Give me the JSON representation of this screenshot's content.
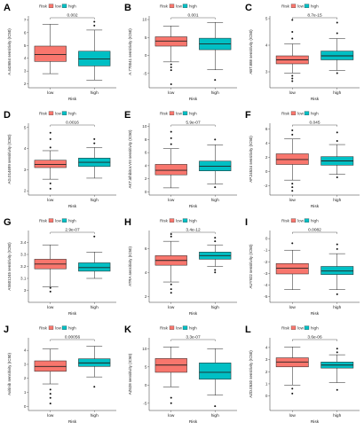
{
  "colors": {
    "low": "#F8766D",
    "high": "#00BFC4"
  },
  "chart_data": [
    {
      "type": "box",
      "letter": "A",
      "ylabel": "A.443654 sensitivity (IC50)",
      "xlabel": "Risk",
      "legend_title": "Risk",
      "legend": [
        "low",
        "high"
      ],
      "categories": [
        "low",
        "high"
      ],
      "pvalue": "0.002",
      "ylim": [
        1.7,
        7.3
      ],
      "yticks": [
        2,
        3,
        4,
        5,
        6,
        7
      ],
      "boxes": [
        {
          "min": 2.8,
          "q1": 3.75,
          "median": 4.3,
          "q3": 4.95,
          "max": 6.65,
          "outliers": []
        },
        {
          "min": 2.3,
          "q1": 3.4,
          "median": 3.95,
          "q3": 4.55,
          "max": 6.2,
          "outliers": [
            6.55,
            6.85
          ]
        }
      ]
    },
    {
      "type": "box",
      "letter": "B",
      "ylabel": "A.770041 sensitivity (IC50)",
      "xlabel": "Risk",
      "legend_title": "Risk",
      "legend": [
        "low",
        "high"
      ],
      "categories": [
        "low",
        "high"
      ],
      "pvalue": "0.001",
      "ylim": [
        -9,
        11
      ],
      "yticks": [
        -5,
        0,
        5,
        10
      ],
      "boxes": [
        {
          "min": -1.8,
          "q1": 2.6,
          "median": 4.0,
          "q3": 5.2,
          "max": 8.2,
          "outliers": [
            -2.5,
            -3.3,
            -4.1,
            -8.0
          ]
        },
        {
          "min": -4.0,
          "q1": 1.6,
          "median": 3.2,
          "q3": 4.8,
          "max": 9.2,
          "outliers": [
            -6.8
          ]
        }
      ]
    },
    {
      "type": "box",
      "letter": "C",
      "ylabel": "ABT.888 sensitivity (IC50)",
      "xlabel": "Risk",
      "legend_title": "Risk",
      "legend": [
        "low",
        "high"
      ],
      "categories": [
        "low",
        "high"
      ],
      "pvalue": "8.7e-15",
      "ylim": [
        2.4,
        5.1
      ],
      "yticks": [
        3,
        4,
        5
      ],
      "boxes": [
        {
          "min": 2.95,
          "q1": 3.3,
          "median": 3.45,
          "q3": 3.6,
          "max": 4.05,
          "outliers": [
            4.25,
            4.5,
            4.95,
            2.85,
            2.75,
            2.65
          ]
        },
        {
          "min": 3.05,
          "q1": 3.45,
          "median": 3.6,
          "q3": 3.78,
          "max": 4.25,
          "outliers": [
            4.45,
            4.85,
            2.95
          ]
        }
      ]
    },
    {
      "type": "box",
      "letter": "D",
      "ylabel": "AG.014699 sensitivity (IC50)",
      "xlabel": "Risk",
      "legend_title": "Risk",
      "legend": [
        "low",
        "high"
      ],
      "categories": [
        "low",
        "high"
      ],
      "pvalue": "0.0016",
      "ylim": [
        1.8,
        5.2
      ],
      "yticks": [
        2,
        3,
        4,
        5
      ],
      "boxes": [
        {
          "min": 2.55,
          "q1": 3.1,
          "median": 3.25,
          "q3": 3.45,
          "max": 3.9,
          "outliers": [
            4.05,
            4.45,
            4.75,
            2.35,
            2.1
          ]
        },
        {
          "min": 2.6,
          "q1": 3.15,
          "median": 3.35,
          "q3": 3.55,
          "max": 4.05,
          "outliers": [
            4.25,
            4.45
          ]
        }
      ]
    },
    {
      "type": "box",
      "letter": "E",
      "ylabel": "AKT.inhibitor.VIII sensitivity (IC50)",
      "xlabel": "Risk",
      "legend_title": "Risk",
      "legend": [
        "low",
        "high"
      ],
      "categories": [
        "low",
        "high"
      ],
      "pvalue": "5.9e-07",
      "ylim": [
        -0.5,
        10.5
      ],
      "yticks": [
        0,
        2,
        4,
        6,
        8,
        10
      ],
      "boxes": [
        {
          "min": 0.6,
          "q1": 2.6,
          "median": 3.3,
          "q3": 4.2,
          "max": 6.6,
          "outliers": [
            7.3,
            8.2,
            9.2
          ]
        },
        {
          "min": 1.2,
          "q1": 3.2,
          "median": 3.9,
          "q3": 4.7,
          "max": 7.2,
          "outliers": [
            8.0,
            0.7
          ]
        }
      ]
    },
    {
      "type": "box",
      "letter": "F",
      "ylabel": "AP.24534 sensitivity (IC50)",
      "xlabel": "Risk",
      "legend_title": "Risk",
      "legend": [
        "low",
        "high"
      ],
      "categories": [
        "low",
        "high"
      ],
      "pvalue": "0.045",
      "ylim": [
        -3.3,
        6.8
      ],
      "yticks": [
        -2,
        0,
        2,
        4,
        6
      ],
      "boxes": [
        {
          "min": -1.2,
          "q1": 1.0,
          "median": 1.7,
          "q3": 2.5,
          "max": 4.6,
          "outliers": [
            5.2,
            5.8,
            -1.7,
            -2.2,
            -2.7
          ]
        },
        {
          "min": -0.4,
          "q1": 0.9,
          "median": 1.5,
          "q3": 2.1,
          "max": 3.8,
          "outliers": [
            4.3,
            5.5,
            -0.8
          ]
        }
      ]
    },
    {
      "type": "box",
      "letter": "G",
      "ylabel": "AS601245 sensitivity (IC50)",
      "xlabel": "Risk",
      "legend_title": "Risk",
      "legend": [
        "low",
        "high"
      ],
      "categories": [
        "low",
        "high"
      ],
      "pvalue": "2.9e-07",
      "ylim": [
        2.9,
        3.5
      ],
      "yticks": [
        3.0,
        3.1,
        3.2,
        3.3,
        3.4
      ],
      "boxes": [
        {
          "min": 3.03,
          "q1": 3.18,
          "median": 3.22,
          "q3": 3.26,
          "max": 3.38,
          "outliers": [
            3.02,
            2.99
          ]
        },
        {
          "min": 3.1,
          "q1": 3.16,
          "median": 3.19,
          "q3": 3.23,
          "max": 3.32,
          "outliers": [
            3.45
          ]
        }
      ]
    },
    {
      "type": "box",
      "letter": "H",
      "ylabel": "ATRA sensitivity (IC50)",
      "xlabel": "Risk",
      "legend_title": "Risk",
      "legend": [
        "low",
        "high"
      ],
      "categories": [
        "low",
        "high"
      ],
      "pvalue": "3.4e-12",
      "ylim": [
        1.5,
        7.5
      ],
      "yticks": [
        2,
        4,
        6
      ],
      "boxes": [
        {
          "min": 3.2,
          "q1": 4.6,
          "median": 5.0,
          "q3": 5.4,
          "max": 6.6,
          "outliers": [
            7.0,
            7.2,
            3.0,
            2.6,
            2.3
          ]
        },
        {
          "min": 4.5,
          "q1": 5.1,
          "median": 5.4,
          "q3": 5.7,
          "max": 6.3,
          "outliers": [
            6.6,
            6.9,
            4.2,
            4.0
          ]
        }
      ]
    },
    {
      "type": "box",
      "letter": "I",
      "ylabel": "AUY922 sensitivity (IC50)",
      "xlabel": "Risk",
      "legend_title": "Risk",
      "legend": [
        "low",
        "high"
      ],
      "categories": [
        "low",
        "high"
      ],
      "pvalue": "0.0082",
      "ylim": [
        -5.5,
        0.7
      ],
      "yticks": [
        -5,
        -4,
        -3,
        -2,
        -1,
        0
      ],
      "boxes": [
        {
          "min": -4.4,
          "q1": -3.05,
          "median": -2.55,
          "q3": -2.15,
          "max": -1.0,
          "outliers": [
            -0.4
          ]
        },
        {
          "min": -4.4,
          "q1": -3.1,
          "median": -2.8,
          "q3": -2.4,
          "max": -1.3,
          "outliers": [
            -0.5,
            -0.9,
            -4.8
          ]
        }
      ]
    },
    {
      "type": "box",
      "letter": "J",
      "ylabel": "Axitinib sensitivity (IC50)",
      "xlabel": "Risk",
      "legend_title": "Risk",
      "legend": [
        "low",
        "high"
      ],
      "categories": [
        "low",
        "high"
      ],
      "pvalue": "0.00056",
      "ylim": [
        -0.3,
        4.9
      ],
      "yticks": [
        0,
        1,
        2,
        3,
        4
      ],
      "boxes": [
        {
          "min": 1.6,
          "q1": 2.5,
          "median": 2.85,
          "q3": 3.25,
          "max": 4.1,
          "outliers": [
            1.2,
            0.9,
            0.6,
            0.2
          ]
        },
        {
          "min": 2.1,
          "q1": 2.85,
          "median": 3.1,
          "q3": 3.4,
          "max": 4.3,
          "outliers": [
            1.4
          ]
        }
      ]
    },
    {
      "type": "box",
      "letter": "K",
      "ylabel": "AZ628 sensitivity (IC50)",
      "xlabel": "Risk",
      "legend_title": "Risk",
      "legend": [
        "low",
        "high"
      ],
      "categories": [
        "low",
        "high"
      ],
      "pvalue": "3.3e-07",
      "ylim": [
        -7,
        13
      ],
      "yticks": [
        -5,
        0,
        5,
        10
      ],
      "boxes": [
        {
          "min": -0.5,
          "q1": 3.5,
          "median": 5.5,
          "q3": 7.3,
          "max": 10.5,
          "outliers": [
            -3.5,
            -5.0
          ]
        },
        {
          "min": -2.8,
          "q1": 1.6,
          "median": 3.5,
          "q3": 6.1,
          "max": 10.0,
          "outliers": [
            -5.8
          ]
        }
      ]
    },
    {
      "type": "box",
      "letter": "L",
      "ylabel": "AZD.0530 sensitivity (IC50)",
      "xlabel": "Risk",
      "legend_title": "Risk",
      "legend": [
        "low",
        "high"
      ],
      "categories": [
        "low",
        "high"
      ],
      "pvalue": "3.6e-06",
      "ylim": [
        -1.2,
        4.8
      ],
      "yticks": [
        0,
        1,
        2,
        3,
        4
      ],
      "boxes": [
        {
          "min": 0.9,
          "q1": 2.4,
          "median": 2.8,
          "q3": 3.15,
          "max": 4.05,
          "outliers": [
            0.6,
            0.2
          ]
        },
        {
          "min": 1.1,
          "q1": 2.3,
          "median": 2.55,
          "q3": 2.8,
          "max": 3.4,
          "outliers": [
            3.6,
            3.9,
            0.5
          ]
        }
      ]
    }
  ]
}
